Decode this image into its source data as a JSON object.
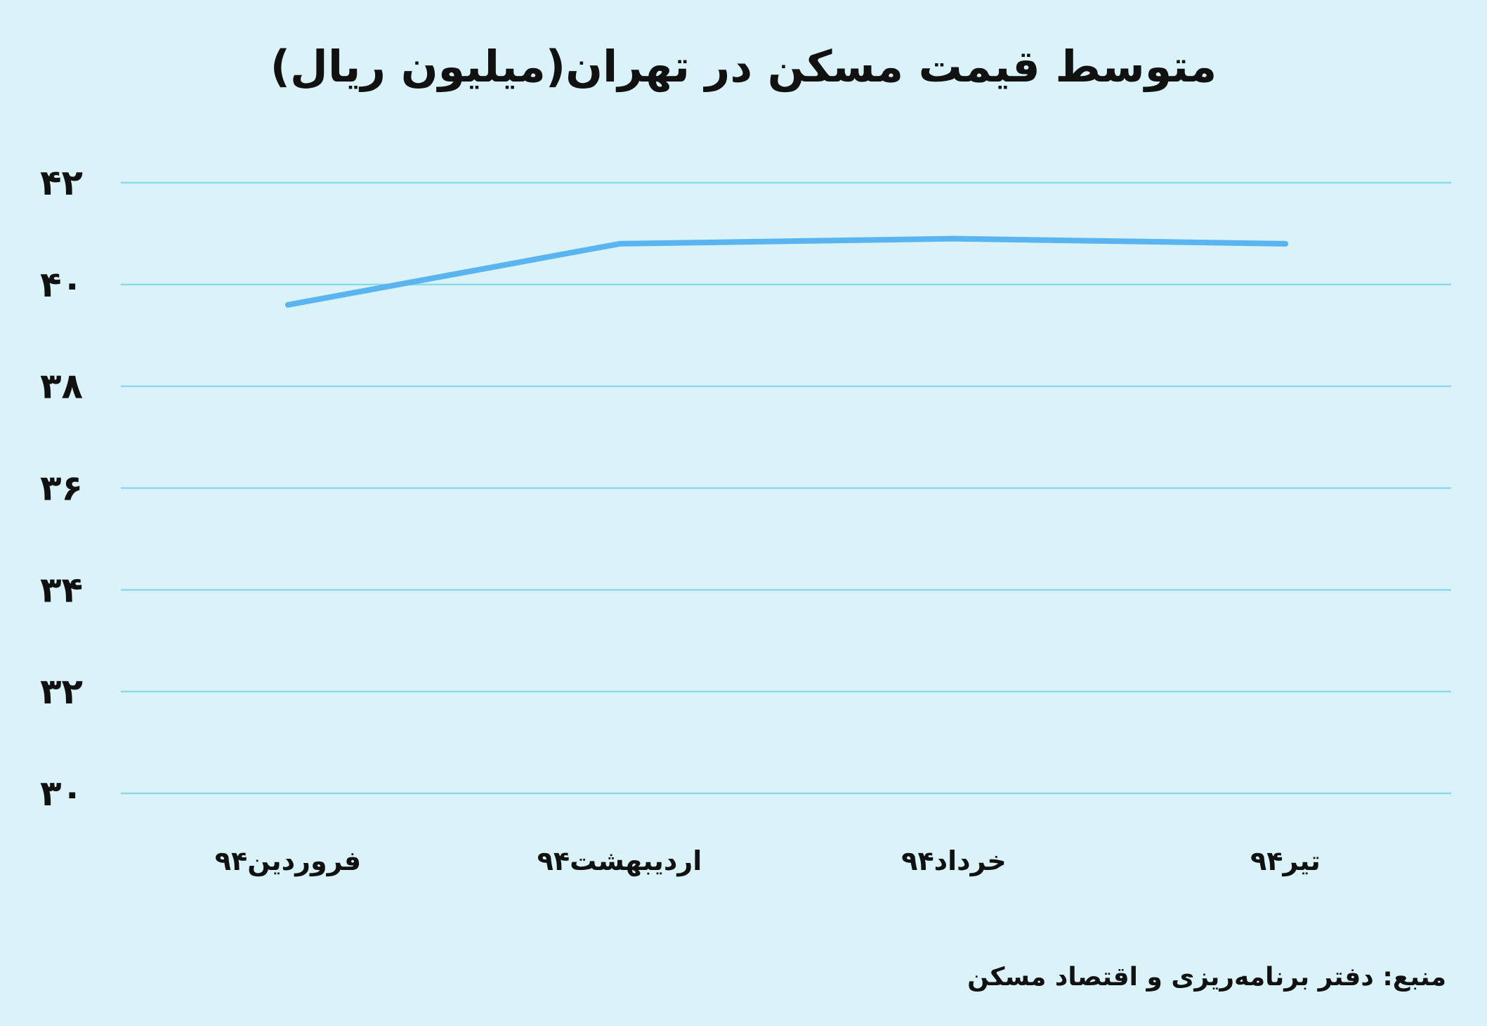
{
  "chart_data": {
    "type": "line",
    "title": "متوسط قیمت مسکن در تهران(میلیون ریال)",
    "xlabel": "",
    "ylabel": "",
    "categories": [
      "فروردین۹۴",
      "اردیبهشت۹۴",
      "خرداد۹۴",
      "تیر۹۴"
    ],
    "series": [
      {
        "values": [
          39.6,
          40.8,
          40.9,
          40.8
        ],
        "color": "#5ab4f0"
      }
    ],
    "ylim": [
      30,
      42
    ],
    "yticks": [
      30,
      32,
      34,
      36,
      38,
      40,
      42
    ],
    "ytick_labels": [
      "۳۰",
      "۳۲",
      "۳۴",
      "۳۶",
      "۳۸",
      "۴۰",
      "۴۲"
    ],
    "grid": true,
    "legend": "none",
    "gridline_color": "#8fd8ec",
    "background_color": "#d9f3f8"
  },
  "source": "منبع: دفتر برنامه‌ریزی و اقتصاد مسکن"
}
